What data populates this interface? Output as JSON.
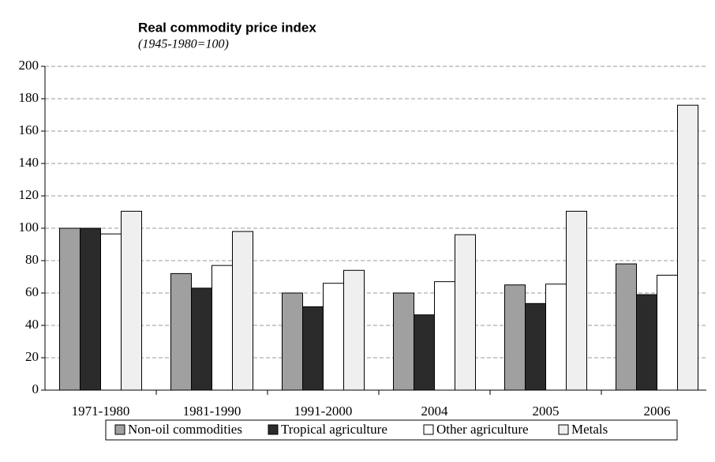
{
  "chart_data": {
    "type": "bar",
    "title": "Real commodity price index",
    "subtitle": "(1945-1980=100)",
    "categories": [
      "1971-1980",
      "1981-1990",
      "1991-2000",
      "2004",
      "2005",
      "2006"
    ],
    "series": [
      {
        "name": "Non-oil commodities",
        "color": "#a0a0a0",
        "values": [
          100,
          72,
          60,
          60,
          65,
          78
        ]
      },
      {
        "name": "Tropical agriculture",
        "color": "#2b2b2b",
        "values": [
          100,
          63,
          51.5,
          46.5,
          53.5,
          59
        ]
      },
      {
        "name": "Other agriculture",
        "color": "#ffffff",
        "values": [
          96.5,
          77,
          66,
          67,
          65.5,
          71
        ]
      },
      {
        "name": "Metals",
        "color": "#efefef",
        "values": [
          110.5,
          98,
          74,
          96,
          110.5,
          176
        ]
      }
    ],
    "ylim": [
      0,
      200
    ],
    "yticks": [
      0,
      20,
      40,
      60,
      80,
      100,
      120,
      140,
      160,
      180,
      200
    ],
    "grid": true,
    "legend": "bottom"
  }
}
